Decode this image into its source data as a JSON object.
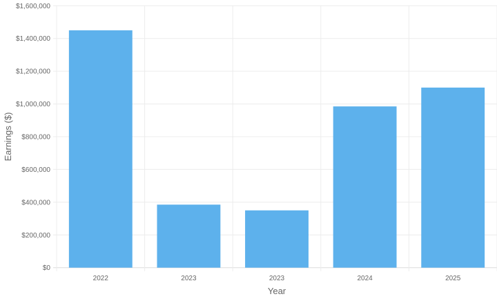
{
  "chart_data": {
    "type": "bar",
    "title": "",
    "xlabel": "Year",
    "ylabel": "Earnings ($)",
    "categories": [
      "2022",
      "2023",
      "2023",
      "2024",
      "2025"
    ],
    "values": [
      1450000,
      385000,
      350000,
      985000,
      1100000
    ],
    "ylim": [
      0,
      1600000
    ],
    "yticks": [
      0,
      200000,
      400000,
      600000,
      800000,
      1000000,
      1200000,
      1400000,
      1600000
    ],
    "ytick_labels": [
      "$0",
      "$200,000",
      "$400,000",
      "$600,000",
      "$800,000",
      "$1,000,000",
      "$1,200,000",
      "$1,400,000",
      "$1,600,000"
    ],
    "grid": true,
    "legend": "none",
    "colors": {
      "bar": "#5db1ec",
      "grid": "#ececec",
      "text": "#666666"
    }
  }
}
